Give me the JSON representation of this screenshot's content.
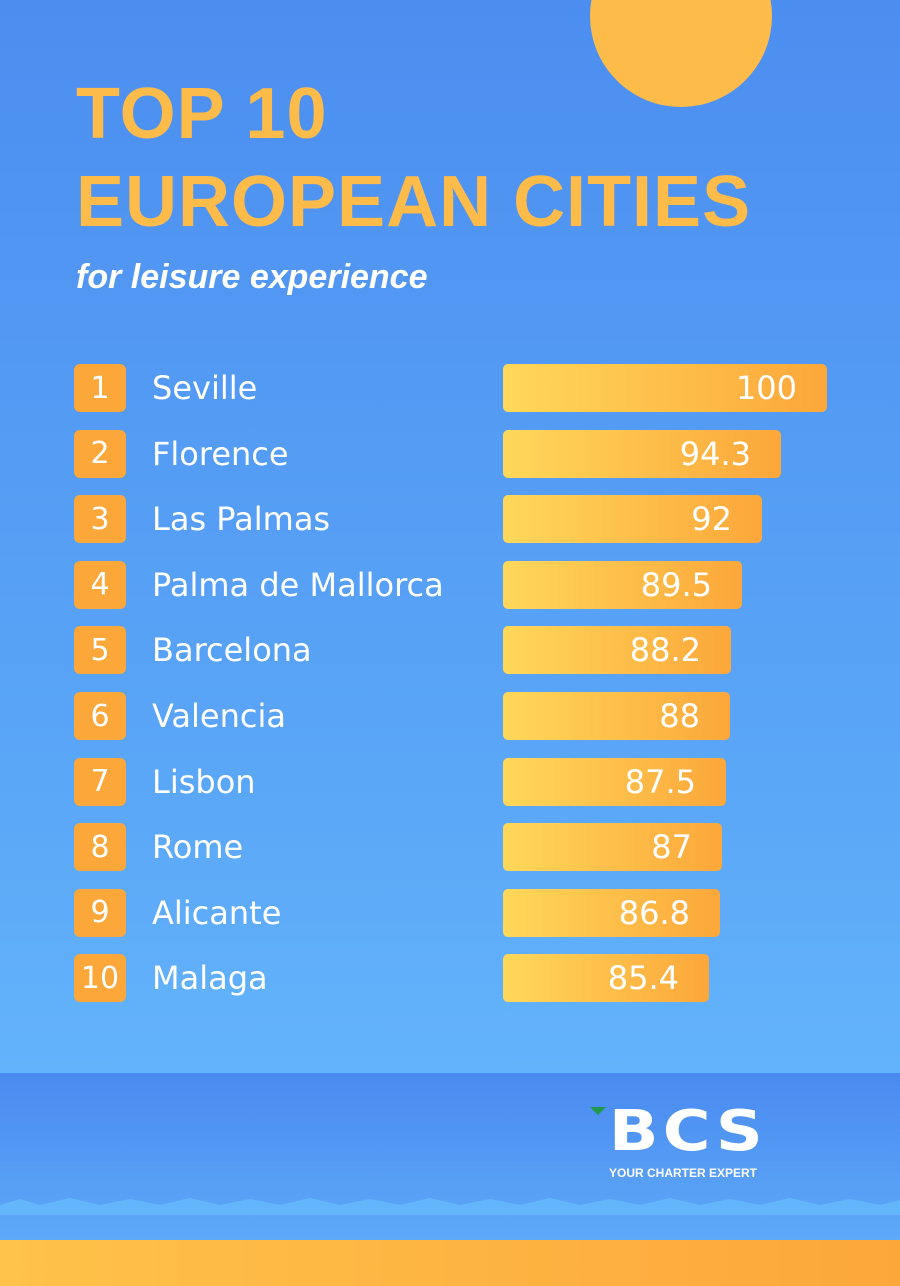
{
  "chart_data": {
    "type": "bar",
    "orientation": "horizontal",
    "title": "TOP 10 EUROPEAN CITIES",
    "subtitle": "for leisure experience",
    "ranks": [
      "1",
      "2",
      "3",
      "4",
      "5",
      "6",
      "7",
      "8",
      "9",
      "10"
    ],
    "categories": [
      "Seville",
      "Florence",
      "Las Palmas",
      "Palma de Mallorca",
      "Barcelona",
      "Valencia",
      "Lisbon",
      "Rome",
      "Alicante",
      "Malaga"
    ],
    "values": [
      100,
      94.3,
      92,
      89.5,
      88.2,
      88,
      87.5,
      87,
      86.8,
      85.4
    ],
    "grid": false,
    "colors": {
      "bar_start": "#ffd85a",
      "bar_end": "#fca73a",
      "badge": "#fca73a",
      "title": "#fdbb4a",
      "background": "#4c8ef0"
    }
  },
  "title_line1": "TOP 10",
  "title_line2": "EUROPEAN CITIES",
  "logo": {
    "text": "BCS",
    "tagline": "YOUR CHARTER EXPERT"
  }
}
